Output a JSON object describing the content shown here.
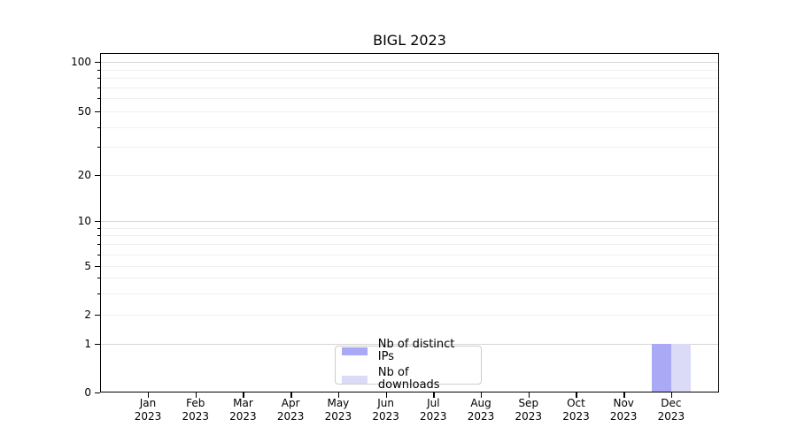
{
  "chart_data": {
    "type": "bar",
    "title": "BIGL 2023",
    "categories": [
      "Jan 2023",
      "Feb 2023",
      "Mar 2023",
      "Apr 2023",
      "May 2023",
      "Jun 2023",
      "Jul 2023",
      "Aug 2023",
      "Sep 2023",
      "Oct 2023",
      "Nov 2023",
      "Dec 2023"
    ],
    "series": [
      {
        "name": "Nb of distinct IPs",
        "color": "#a9a9f5",
        "values": [
          0,
          0,
          0,
          0,
          0,
          0,
          0,
          0,
          0,
          0,
          0,
          1
        ]
      },
      {
        "name": "Nb of downloads",
        "color": "#dbdbf8",
        "values": [
          0,
          0,
          0,
          0,
          0,
          0,
          0,
          0,
          0,
          0,
          0,
          1
        ]
      }
    ],
    "xlabel": "",
    "ylabel": "",
    "yscale": "symlog",
    "ylim": [
      0,
      120
    ],
    "yticks_labeled": [
      0,
      1,
      2,
      5,
      10,
      20,
      50,
      100
    ],
    "yticks_major": [
      1,
      10,
      100
    ],
    "yticks_minor": [
      2,
      3,
      4,
      5,
      6,
      7,
      8,
      9,
      20,
      30,
      40,
      50,
      60,
      70,
      80,
      90
    ],
    "grid": true,
    "legend_position": "lower center"
  },
  "colors": {
    "bar_distinct_ips": "#a9a9f5",
    "bar_downloads": "#dbdbf8",
    "grid_major": "#d6d6d6",
    "grid_minor": "#f0f0f0",
    "axis": "#000000",
    "legend_border": "#cccccc",
    "background": "#ffffff",
    "text": "#000000"
  }
}
